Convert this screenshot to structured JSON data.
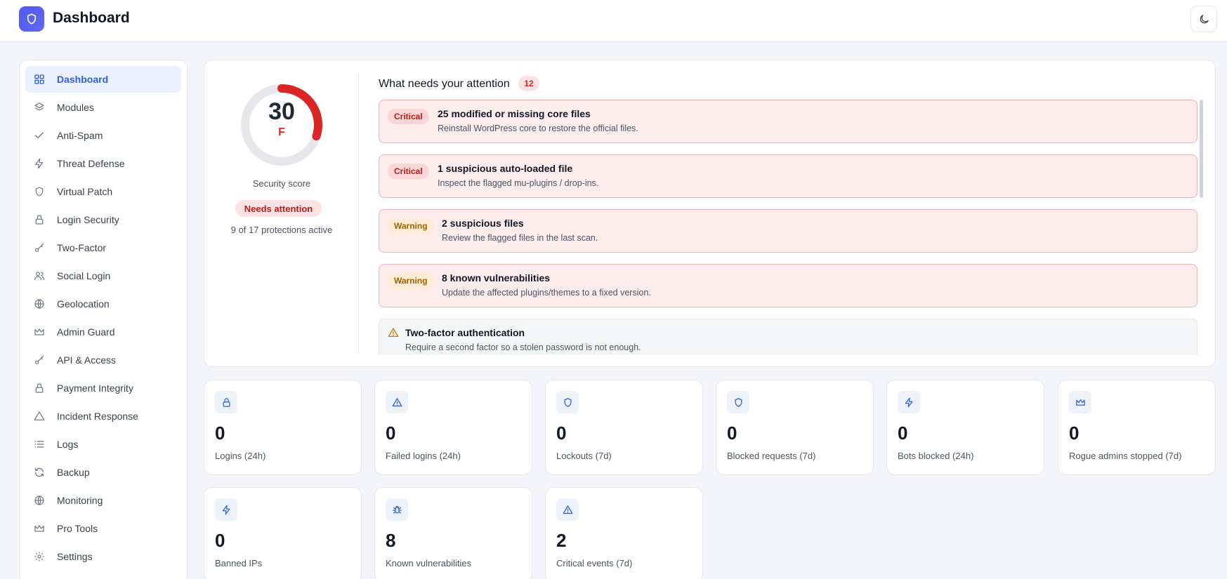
{
  "header": {
    "title": "Dashboard"
  },
  "sidebar": {
    "items": [
      {
        "label": "Dashboard",
        "icon": "grid-icon",
        "active": true
      },
      {
        "label": "Modules",
        "icon": "layers-icon"
      },
      {
        "label": "Anti-Spam",
        "icon": "check-icon"
      },
      {
        "label": "Threat Defense",
        "icon": "zap-icon"
      },
      {
        "label": "Virtual Patch",
        "icon": "shield-icon"
      },
      {
        "label": "Login Security",
        "icon": "lock-icon"
      },
      {
        "label": "Two-Factor",
        "icon": "key-icon"
      },
      {
        "label": "Social Login",
        "icon": "users-icon"
      },
      {
        "label": "Geolocation",
        "icon": "globe-icon"
      },
      {
        "label": "Admin Guard",
        "icon": "crown-icon"
      },
      {
        "label": "API & Access",
        "icon": "key-icon"
      },
      {
        "label": "Payment Integrity",
        "icon": "lock-icon"
      },
      {
        "label": "Incident Response",
        "icon": "alert-triangle-icon"
      },
      {
        "label": "Logs",
        "icon": "list-icon"
      },
      {
        "label": "Backup",
        "icon": "refresh-icon"
      },
      {
        "label": "Monitoring",
        "icon": "globe-icon"
      },
      {
        "label": "Pro Tools",
        "icon": "crown-icon"
      },
      {
        "label": "Settings",
        "icon": "gear-icon"
      }
    ]
  },
  "score": {
    "value": "30",
    "grade": "F",
    "fraction": 0.3,
    "label": "Security score",
    "status": "Needs attention",
    "protections": "9 of 17 protections active",
    "color": "#dc2626"
  },
  "attention": {
    "title": "What needs your attention",
    "count": "12",
    "items": [
      {
        "severity": "Critical",
        "title": "25 modified or missing core files",
        "desc": "Reinstall WordPress core to restore the official files."
      },
      {
        "severity": "Critical",
        "title": "1 suspicious auto-loaded file",
        "desc": "Inspect the flagged mu-plugins / drop-ins."
      },
      {
        "severity": "Warning",
        "title": "2 suspicious files",
        "desc": "Review the flagged files in the last scan."
      },
      {
        "severity": "Warning",
        "title": "8 known vulnerabilities",
        "desc": "Update the affected plugins/themes to a fixed version."
      },
      {
        "severity": "",
        "title": "Two-factor authentication",
        "desc": "Require a second factor so a stolen password is not enough."
      }
    ]
  },
  "stats": [
    {
      "value": "0",
      "label": "Logins (24h)",
      "icon": "lock-icon"
    },
    {
      "value": "0",
      "label": "Failed logins (24h)",
      "icon": "alert-triangle-icon"
    },
    {
      "value": "0",
      "label": "Lockouts (7d)",
      "icon": "shield-icon"
    },
    {
      "value": "0",
      "label": "Blocked requests (7d)",
      "icon": "shield-icon"
    },
    {
      "value": "0",
      "label": "Bots blocked (24h)",
      "icon": "zap-icon"
    },
    {
      "value": "0",
      "label": "Rogue admins stopped (7d)",
      "icon": "crown-icon"
    },
    {
      "value": "0",
      "label": "Banned IPs",
      "icon": "zap-icon"
    },
    {
      "value": "8",
      "label": "Known vulnerabilities",
      "icon": "bug-icon"
    },
    {
      "value": "2",
      "label": "Critical events (7d)",
      "icon": "alert-triangle-icon"
    }
  ]
}
